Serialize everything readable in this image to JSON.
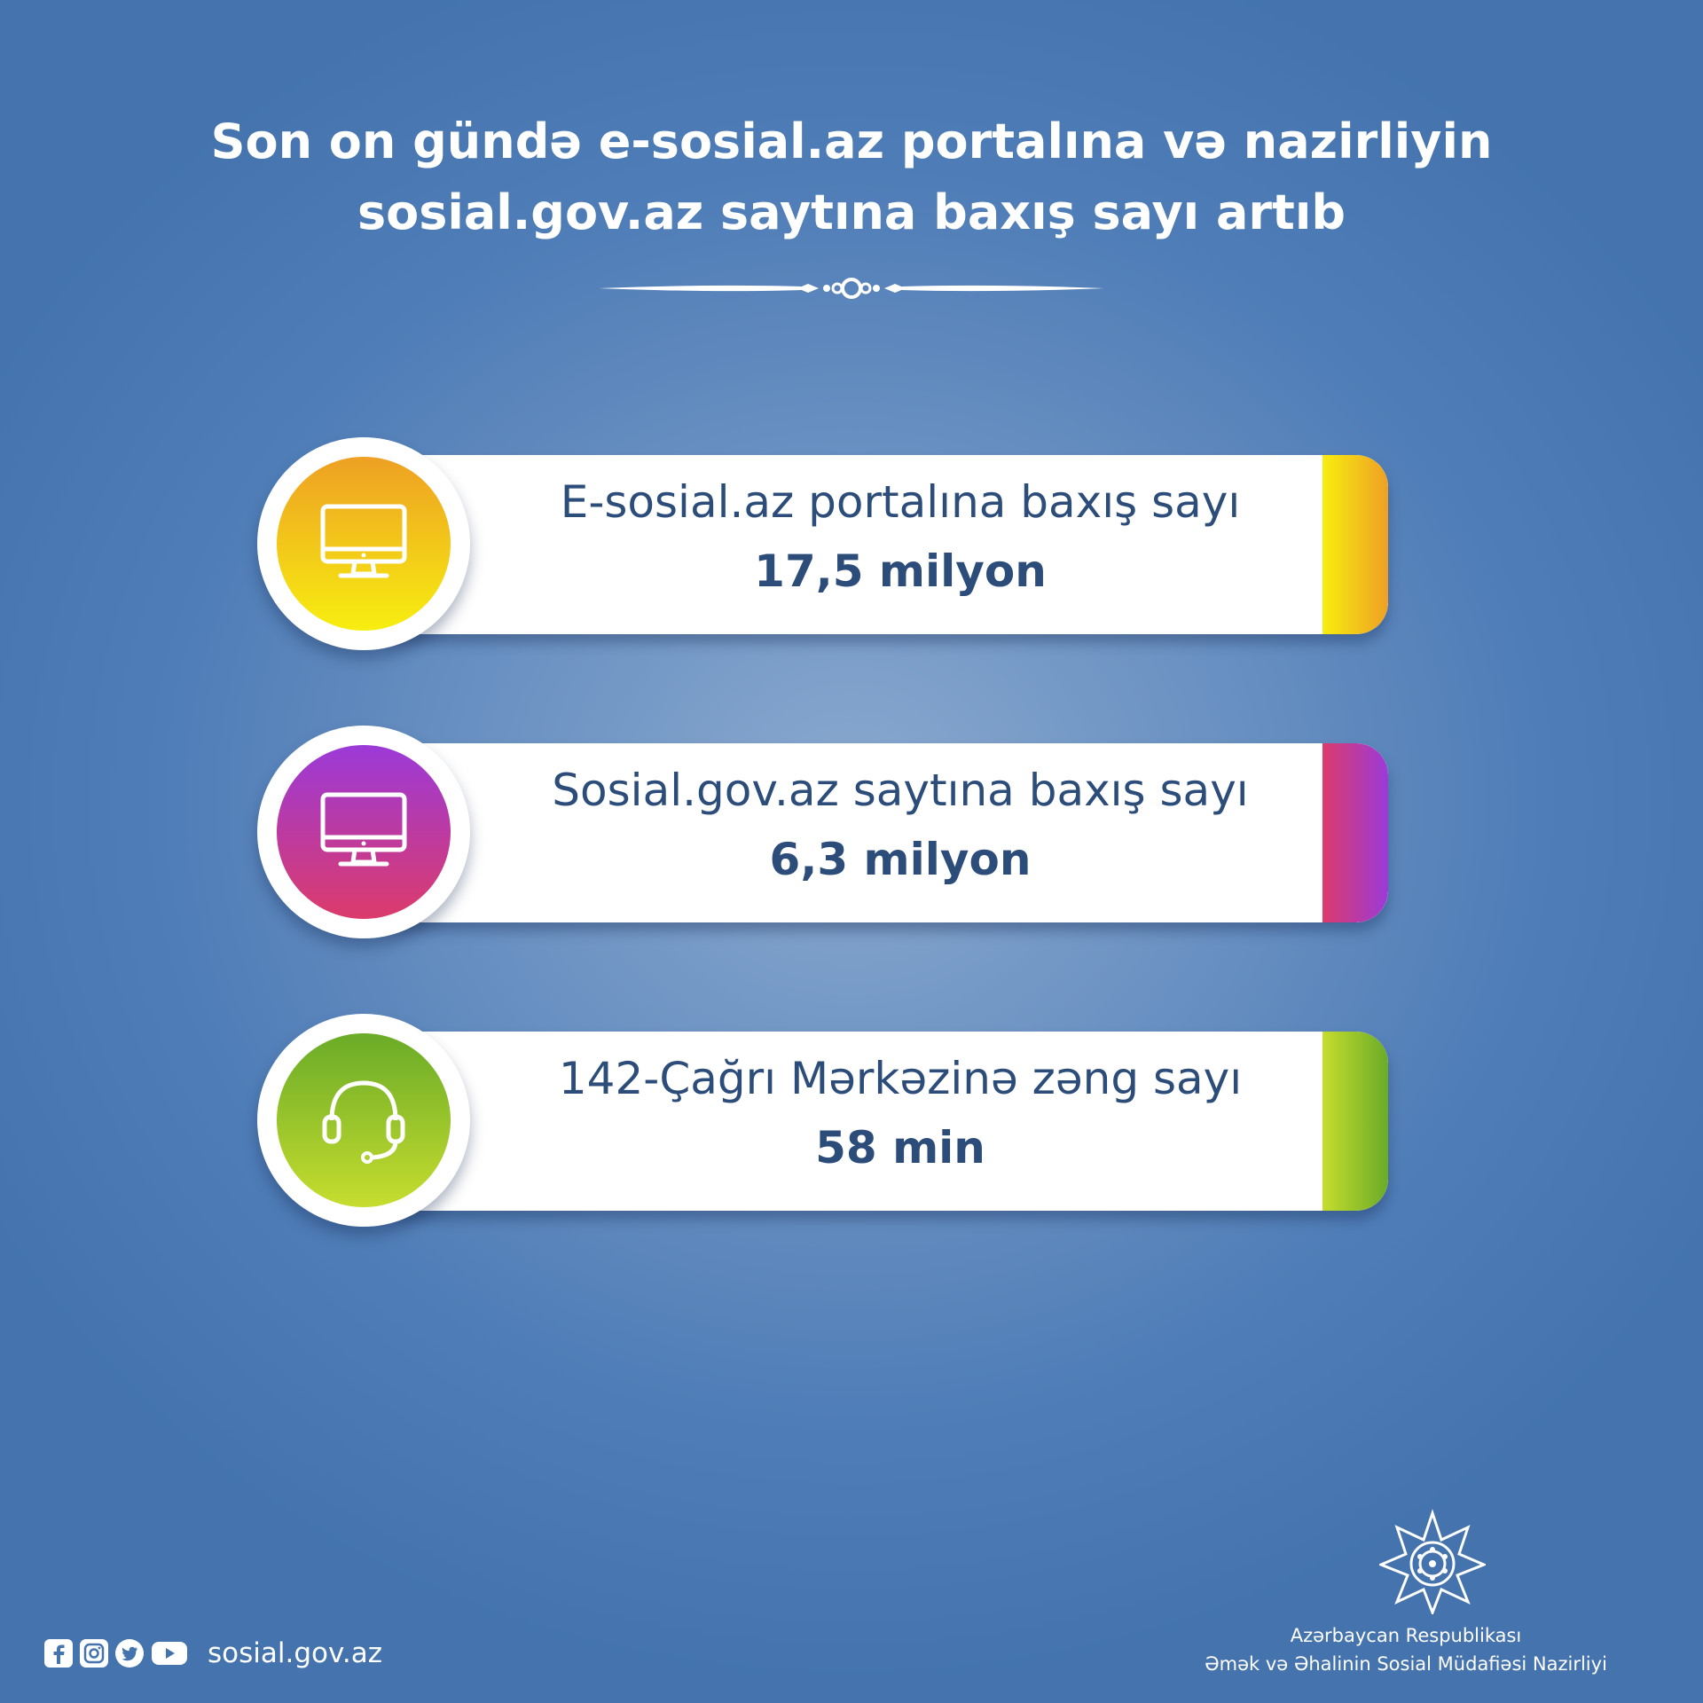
{
  "header": {
    "title_line1": "Son on gündə e-sosial.az portalına və nazirliyin",
    "title_line2": "sosial.gov.az saytına baxış sayı artıb"
  },
  "stats": [
    {
      "label": "E-sosial.az portalına baxış sayı",
      "value": "17,5 milyon",
      "icon": "monitor-icon",
      "colors": [
        "#eea024",
        "#f7ee10"
      ]
    },
    {
      "label": "Sosial.gov.az saytına baxış sayı",
      "value": "6,3 milyon",
      "icon": "monitor-icon",
      "colors": [
        "#9b3ad8",
        "#dc3b6b"
      ]
    },
    {
      "label": "142-Çağrı Mərkəzinə zəng sayı",
      "value": "58 min",
      "icon": "headset-icon",
      "colors": [
        "#6aab28",
        "#c6dd2e"
      ]
    }
  ],
  "footer": {
    "site": "sosial.gov.az",
    "social_icons": [
      "facebook-icon",
      "instagram-icon",
      "twitter-icon",
      "youtube-icon"
    ],
    "ministry_line1": "Azərbaycan Respublikası",
    "ministry_line2": "Əmək və Əhalinin Sosial Müdafiəsi Nazirliyi"
  }
}
